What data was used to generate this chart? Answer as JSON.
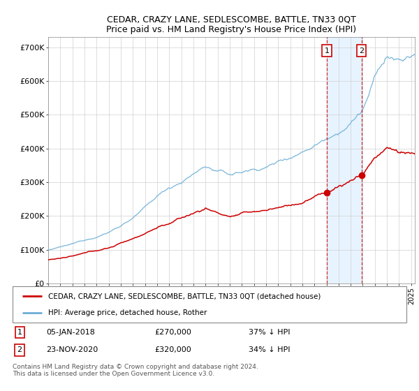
{
  "title": "CEDAR, CRAZY LANE, SEDLESCOMBE, BATTLE, TN33 0QT",
  "subtitle": "Price paid vs. HM Land Registry's House Price Index (HPI)",
  "ylabel_ticks": [
    "£0",
    "£100K",
    "£200K",
    "£300K",
    "£400K",
    "£500K",
    "£600K",
    "£700K"
  ],
  "ytick_values": [
    0,
    100000,
    200000,
    300000,
    400000,
    500000,
    600000,
    700000
  ],
  "ylim": [
    0,
    730000
  ],
  "xlim_start": 1995.0,
  "xlim_end": 2025.3,
  "xtick_years": [
    1995,
    1996,
    1997,
    1998,
    1999,
    2000,
    2001,
    2002,
    2003,
    2004,
    2005,
    2006,
    2007,
    2008,
    2009,
    2010,
    2011,
    2012,
    2013,
    2014,
    2015,
    2016,
    2017,
    2018,
    2019,
    2020,
    2021,
    2022,
    2023,
    2024,
    2025
  ],
  "hpi_color": "#6baed6",
  "price_color": "#cc0000",
  "vline_color": "#cc0000",
  "marker1_date": 2018.03,
  "marker2_date": 2020.9,
  "marker1_price": 270000,
  "marker2_price": 320000,
  "bg_shade_color": "#ddeeff",
  "legend_line1": "CEDAR, CRAZY LANE, SEDLESCOMBE, BATTLE, TN33 0QT (detached house)",
  "legend_line2": "HPI: Average price, detached house, Rother",
  "note1_date": "05-JAN-2018",
  "note1_price": "£270,000",
  "note1_pct": "37% ↓ HPI",
  "note2_date": "23-NOV-2020",
  "note2_price": "£320,000",
  "note2_pct": "34% ↓ HPI",
  "footer": "Contains HM Land Registry data © Crown copyright and database right 2024.\nThis data is licensed under the Open Government Licence v3.0."
}
